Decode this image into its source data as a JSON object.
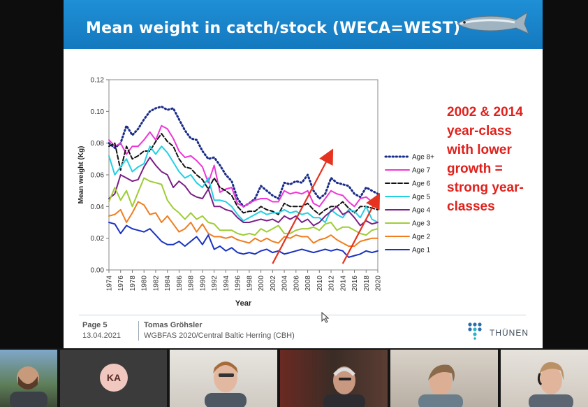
{
  "slide": {
    "title": "Mean weight in catch/stock (WECA=WEST)",
    "annotation": "2002 & 2014\nyear-class\nwith lower\ngrowth =\nstrong year-\nclasses",
    "footer": {
      "page_label": "Page 5",
      "date": "13.04.2021",
      "author": "Tomas Gröhsler",
      "event": "WGBFAS 2020/Central Baltic Herring (CBH)",
      "logo_text": "THÜNEN"
    },
    "colors": {
      "banner": "#1a86cc",
      "annotation": "#e0201b"
    }
  },
  "participants": [
    {
      "icon": "video-tile"
    },
    {
      "initials": "KA",
      "icon": "avatar"
    },
    {
      "icon": "video-tile"
    },
    {
      "icon": "video-tile"
    },
    {
      "icon": "video-tile"
    },
    {
      "icon": "video-tile"
    }
  ],
  "chart_data": {
    "type": "line",
    "xlabel": "Year",
    "ylabel": "Mean weight (Kg)",
    "xlim": [
      1974,
      2020
    ],
    "ylim": [
      0,
      0.12
    ],
    "yticks": [
      "0.00",
      "0.02",
      "0.04",
      "0.06",
      "0.08",
      "0.10",
      "0.12"
    ],
    "xticks": [
      "1974",
      "1976",
      "1978",
      "1980",
      "1982",
      "1984",
      "1986",
      "1988",
      "1990",
      "1992",
      "1994",
      "1996",
      "1998",
      "2000",
      "2002",
      "2004",
      "2006",
      "2008",
      "2010",
      "2012",
      "2014",
      "2016",
      "2018",
      "2020"
    ],
    "grid": false,
    "legend": "right",
    "x": [
      1974,
      1975,
      1976,
      1977,
      1978,
      1979,
      1980,
      1981,
      1982,
      1983,
      1984,
      1985,
      1986,
      1987,
      1988,
      1989,
      1990,
      1991,
      1992,
      1993,
      1994,
      1995,
      1996,
      1997,
      1998,
      1999,
      2000,
      2001,
      2002,
      2003,
      2004,
      2005,
      2006,
      2007,
      2008,
      2009,
      2010,
      2011,
      2012,
      2013,
      2014,
      2015,
      2016,
      2017,
      2018,
      2019,
      2020
    ],
    "series": [
      {
        "name": "Age 8+",
        "color": "#1a2d8a",
        "dash": "dot",
        "values": [
          0.08,
          0.077,
          0.08,
          0.091,
          0.085,
          0.089,
          0.095,
          0.1,
          0.102,
          0.103,
          0.101,
          0.102,
          0.095,
          0.088,
          0.083,
          0.082,
          0.075,
          0.07,
          0.071,
          0.066,
          0.06,
          0.056,
          0.045,
          0.04,
          0.042,
          0.045,
          0.053,
          0.05,
          0.047,
          0.045,
          0.055,
          0.054,
          0.056,
          0.055,
          0.06,
          0.05,
          0.045,
          0.048,
          0.058,
          0.055,
          0.054,
          0.053,
          0.048,
          0.046,
          0.052,
          0.05,
          0.048
        ]
      },
      {
        "name": "Age 7",
        "color": "#ef35d8",
        "dash": "solid",
        "values": [
          0.082,
          0.078,
          0.08,
          0.073,
          0.078,
          0.078,
          0.082,
          0.087,
          0.082,
          0.091,
          0.089,
          0.083,
          0.075,
          0.071,
          0.072,
          0.069,
          0.065,
          0.055,
          0.066,
          0.049,
          0.051,
          0.052,
          0.042,
          0.04,
          0.042,
          0.044,
          0.045,
          0.045,
          0.043,
          0.043,
          0.05,
          0.048,
          0.049,
          0.048,
          0.05,
          0.042,
          0.04,
          0.045,
          0.05,
          0.048,
          0.047,
          0.043,
          0.04,
          0.045,
          0.046,
          0.043,
          0.045
        ]
      },
      {
        "name": "Age 6",
        "color": "#111111",
        "dash": "dash",
        "values": [
          0.078,
          0.08,
          0.063,
          0.078,
          0.07,
          0.072,
          0.075,
          0.075,
          0.081,
          0.086,
          0.081,
          0.078,
          0.07,
          0.065,
          0.064,
          0.06,
          0.057,
          0.051,
          0.058,
          0.052,
          0.05,
          0.047,
          0.04,
          0.036,
          0.037,
          0.037,
          0.04,
          0.038,
          0.037,
          0.035,
          0.042,
          0.04,
          0.04,
          0.04,
          0.042,
          0.038,
          0.035,
          0.038,
          0.04,
          0.04,
          0.043,
          0.039,
          0.036,
          0.04,
          0.04,
          0.039,
          0.038
        ]
      },
      {
        "name": "Age 5",
        "color": "#22d0e4",
        "dash": "solid",
        "values": [
          0.072,
          0.06,
          0.065,
          0.07,
          0.062,
          0.065,
          0.067,
          0.078,
          0.073,
          0.078,
          0.074,
          0.068,
          0.062,
          0.058,
          0.06,
          0.055,
          0.052,
          0.058,
          0.044,
          0.044,
          0.043,
          0.04,
          0.035,
          0.031,
          0.033,
          0.035,
          0.037,
          0.035,
          0.036,
          0.036,
          0.038,
          0.036,
          0.037,
          0.035,
          0.036,
          0.033,
          0.033,
          0.03,
          0.038,
          0.035,
          0.033,
          0.038,
          0.037,
          0.033,
          0.04,
          0.032,
          0.03
        ]
      },
      {
        "name": "Age 4",
        "color": "#7a1e86",
        "dash": "solid",
        "values": [
          0.045,
          0.048,
          0.06,
          0.058,
          0.056,
          0.057,
          0.065,
          0.071,
          0.066,
          0.062,
          0.06,
          0.052,
          0.056,
          0.053,
          0.048,
          0.046,
          0.045,
          0.051,
          0.04,
          0.04,
          0.038,
          0.037,
          0.033,
          0.03,
          0.03,
          0.031,
          0.032,
          0.031,
          0.032,
          0.03,
          0.034,
          0.032,
          0.034,
          0.03,
          0.032,
          0.028,
          0.03,
          0.034,
          0.037,
          0.04,
          0.035,
          0.037,
          0.033,
          0.028,
          0.031,
          0.029,
          0.03
        ]
      },
      {
        "name": "Age 3",
        "color": "#9fcc35",
        "dash": "solid",
        "values": [
          0.043,
          0.052,
          0.044,
          0.05,
          0.04,
          0.049,
          0.058,
          0.056,
          0.055,
          0.054,
          0.044,
          0.039,
          0.036,
          0.032,
          0.036,
          0.032,
          0.034,
          0.03,
          0.029,
          0.025,
          0.025,
          0.025,
          0.023,
          0.022,
          0.023,
          0.022,
          0.026,
          0.024,
          0.026,
          0.028,
          0.023,
          0.023,
          0.025,
          0.026,
          0.026,
          0.027,
          0.025,
          0.029,
          0.03,
          0.025,
          0.027,
          0.027,
          0.025,
          0.023,
          0.022,
          0.025,
          0.026
        ]
      },
      {
        "name": "Age 2",
        "color": "#f07d1e",
        "dash": "solid",
        "values": [
          0.034,
          0.035,
          0.038,
          0.03,
          0.036,
          0.043,
          0.041,
          0.035,
          0.036,
          0.03,
          0.034,
          0.029,
          0.024,
          0.026,
          0.03,
          0.024,
          0.029,
          0.023,
          0.021,
          0.021,
          0.02,
          0.021,
          0.019,
          0.018,
          0.017,
          0.02,
          0.018,
          0.02,
          0.018,
          0.017,
          0.021,
          0.02,
          0.022,
          0.021,
          0.021,
          0.017,
          0.019,
          0.02,
          0.022,
          0.019,
          0.017,
          0.015,
          0.015,
          0.018,
          0.019,
          0.02,
          0.02
        ]
      },
      {
        "name": "Age 1",
        "color": "#1a33c2",
        "dash": "solid",
        "values": [
          0.03,
          0.029,
          0.023,
          0.028,
          0.026,
          0.025,
          0.024,
          0.026,
          0.022,
          0.018,
          0.016,
          0.016,
          0.018,
          0.015,
          0.018,
          0.021,
          0.016,
          0.022,
          0.013,
          0.015,
          0.012,
          0.014,
          0.011,
          0.01,
          0.011,
          0.01,
          0.012,
          0.013,
          0.011,
          0.012,
          0.01,
          0.011,
          0.012,
          0.013,
          0.012,
          0.011,
          0.012,
          0.013,
          0.012,
          0.013,
          0.012,
          0.008,
          0.009,
          0.01,
          0.012,
          0.011,
          0.012
        ]
      }
    ],
    "arrows": [
      {
        "from": [
          2002,
          0.004
        ],
        "to": [
          2012,
          0.074
        ],
        "color": "#e5331f"
      },
      {
        "from": [
          2014,
          0.004
        ],
        "to": [
          2020,
          0.046
        ],
        "color": "#e5331f"
      }
    ]
  }
}
